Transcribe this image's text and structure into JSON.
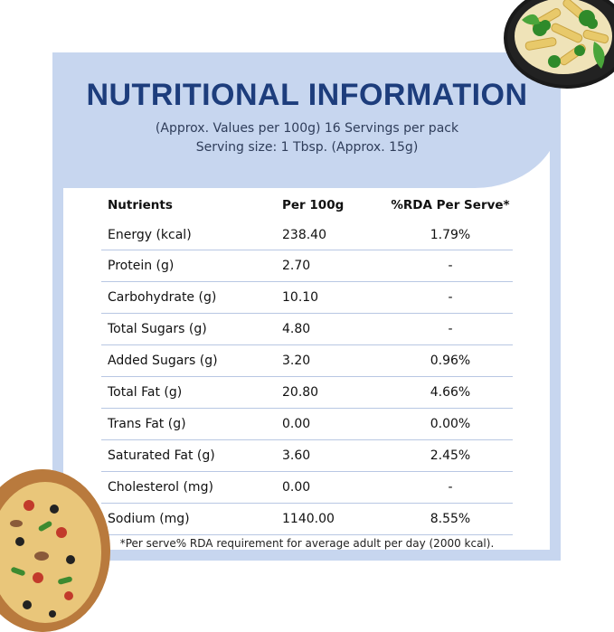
{
  "header": {
    "title": "NUTRITIONAL INFORMATION",
    "subtitle_line1": "(Approx. Values per 100g) 16 Servings per pack",
    "subtitle_line2": "Serving size: 1 Tbsp. (Approx. 15g)"
  },
  "table": {
    "columns": [
      "Nutrients",
      "Per 100g",
      "%RDA Per Serve*"
    ],
    "rows": [
      {
        "nutrient": "Energy (kcal)",
        "per100g": "238.40",
        "rda": "1.79%"
      },
      {
        "nutrient": "Protein (g)",
        "per100g": "2.70",
        "rda": "-"
      },
      {
        "nutrient": "Carbohydrate (g)",
        "per100g": "10.10",
        "rda": "-"
      },
      {
        "nutrient": "Total Sugars (g)",
        "per100g": "4.80",
        "rda": "-"
      },
      {
        "nutrient": "Added Sugars (g)",
        "per100g": "3.20",
        "rda": "0.96%"
      },
      {
        "nutrient": "Total Fat (g)",
        "per100g": "20.80",
        "rda": "4.66%"
      },
      {
        "nutrient": "Trans Fat (g)",
        "per100g": "0.00",
        "rda": "0.00%"
      },
      {
        "nutrient": "Saturated Fat (g)",
        "per100g": "3.60",
        "rda": "2.45%"
      },
      {
        "nutrient": "Cholesterol (mg)",
        "per100g": "0.00",
        "rda": "-"
      },
      {
        "nutrient": "Sodium (mg)",
        "per100g": "1140.00",
        "rda": "8.55%"
      }
    ]
  },
  "footnote": "*Per serve% RDA requirement for average adult per day (2000 kcal).",
  "images": {
    "top_right": "pasta-bowl-photo",
    "bottom_left": "pizza-photo"
  },
  "colors": {
    "accent": "#c7d6ef",
    "title": "#1d3d7c",
    "divider": "#b8c7e3"
  }
}
